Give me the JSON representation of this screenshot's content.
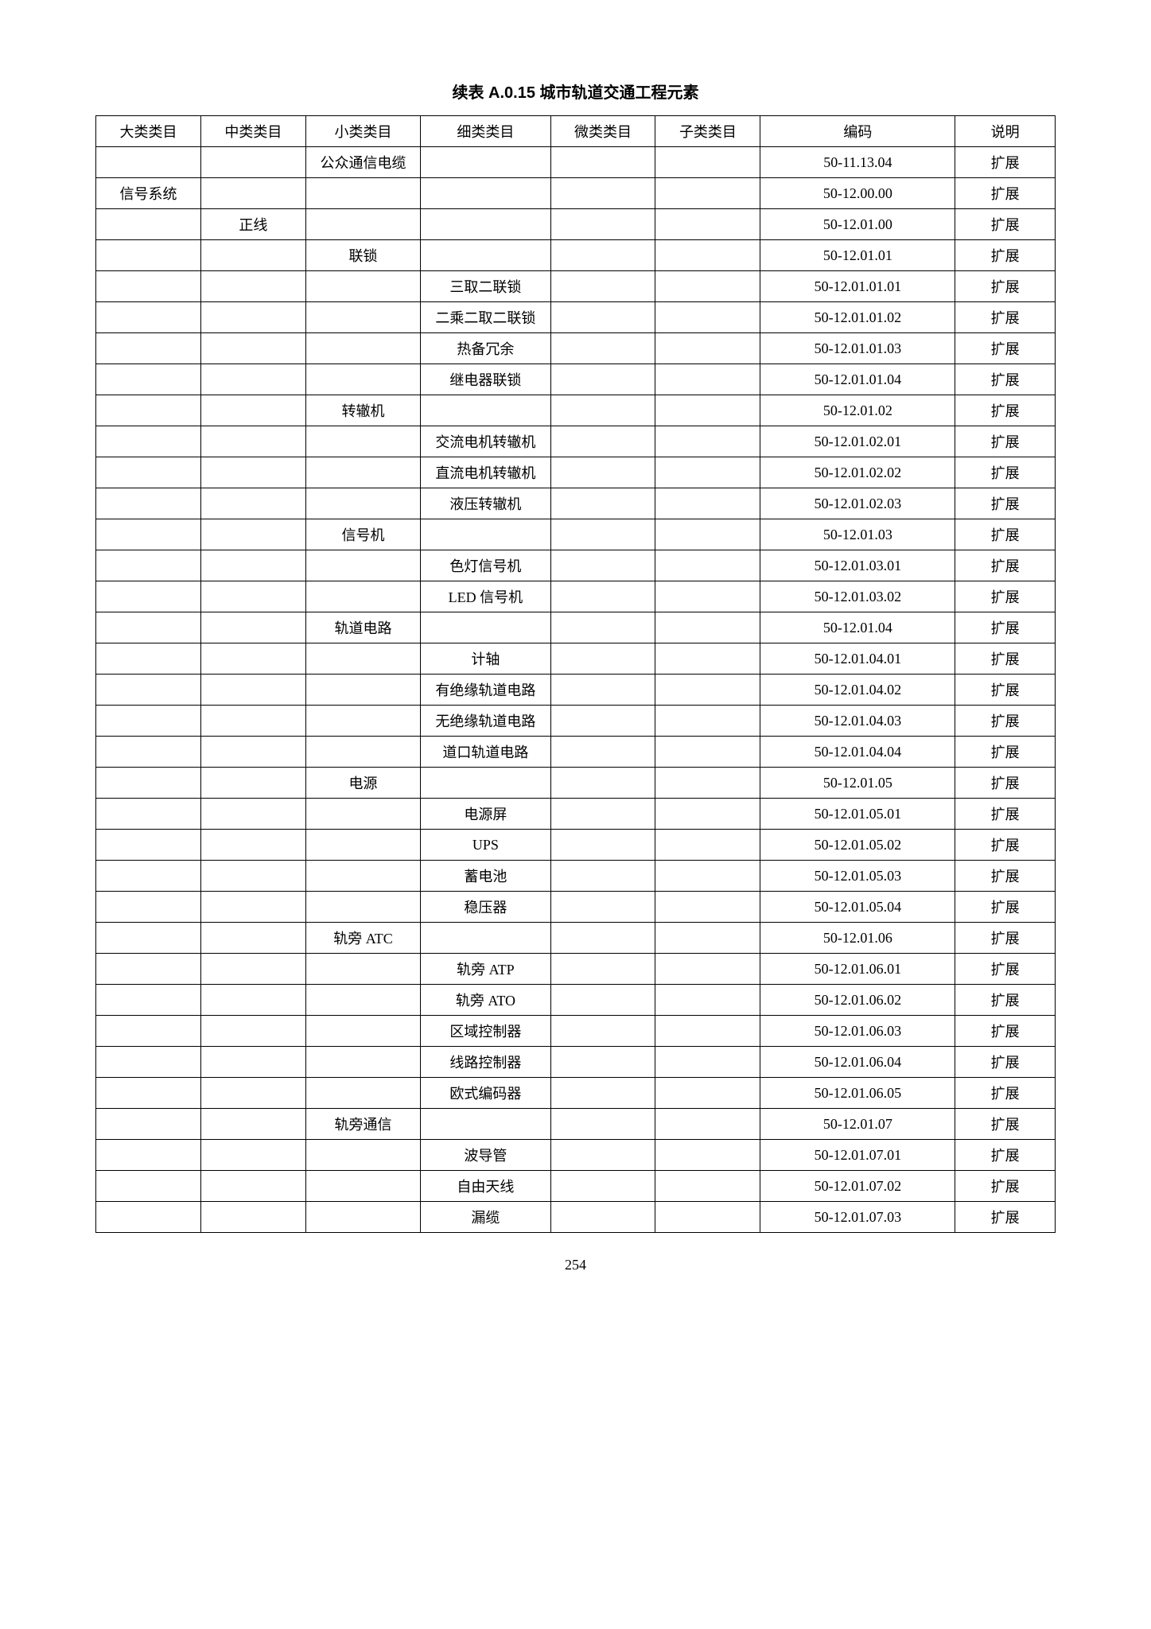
{
  "title": "续表 A.0.15  城市轨道交通工程元素",
  "pageNumber": "254",
  "headers": {
    "col1": "大类类目",
    "col2": "中类类目",
    "col3": "小类类目",
    "col4": "细类类目",
    "col5": "微类类目",
    "col6": "子类类目",
    "col7": "编码",
    "col8": "说明"
  },
  "rows": [
    {
      "c1": "",
      "c2": "",
      "c3": "公众通信电缆",
      "c4": "",
      "c5": "",
      "c6": "",
      "c7": "50-11.13.04",
      "c8": "扩展"
    },
    {
      "c1": "信号系统",
      "c2": "",
      "c3": "",
      "c4": "",
      "c5": "",
      "c6": "",
      "c7": "50-12.00.00",
      "c8": "扩展"
    },
    {
      "c1": "",
      "c2": "正线",
      "c3": "",
      "c4": "",
      "c5": "",
      "c6": "",
      "c7": "50-12.01.00",
      "c8": "扩展"
    },
    {
      "c1": "",
      "c2": "",
      "c3": "联锁",
      "c4": "",
      "c5": "",
      "c6": "",
      "c7": "50-12.01.01",
      "c8": "扩展"
    },
    {
      "c1": "",
      "c2": "",
      "c3": "",
      "c4": "三取二联锁",
      "c5": "",
      "c6": "",
      "c7": "50-12.01.01.01",
      "c8": "扩展"
    },
    {
      "c1": "",
      "c2": "",
      "c3": "",
      "c4": "二乘二取二联锁",
      "c5": "",
      "c6": "",
      "c7": "50-12.01.01.02",
      "c8": "扩展"
    },
    {
      "c1": "",
      "c2": "",
      "c3": "",
      "c4": "热备冗余",
      "c5": "",
      "c6": "",
      "c7": "50-12.01.01.03",
      "c8": "扩展"
    },
    {
      "c1": "",
      "c2": "",
      "c3": "",
      "c4": "继电器联锁",
      "c5": "",
      "c6": "",
      "c7": "50-12.01.01.04",
      "c8": "扩展"
    },
    {
      "c1": "",
      "c2": "",
      "c3": "转辙机",
      "c4": "",
      "c5": "",
      "c6": "",
      "c7": "50-12.01.02",
      "c8": "扩展"
    },
    {
      "c1": "",
      "c2": "",
      "c3": "",
      "c4": "交流电机转辙机",
      "c5": "",
      "c6": "",
      "c7": "50-12.01.02.01",
      "c8": "扩展"
    },
    {
      "c1": "",
      "c2": "",
      "c3": "",
      "c4": "直流电机转辙机",
      "c5": "",
      "c6": "",
      "c7": "50-12.01.02.02",
      "c8": "扩展"
    },
    {
      "c1": "",
      "c2": "",
      "c3": "",
      "c4": "液压转辙机",
      "c5": "",
      "c6": "",
      "c7": "50-12.01.02.03",
      "c8": "扩展"
    },
    {
      "c1": "",
      "c2": "",
      "c3": "信号机",
      "c4": "",
      "c5": "",
      "c6": "",
      "c7": "50-12.01.03",
      "c8": "扩展"
    },
    {
      "c1": "",
      "c2": "",
      "c3": "",
      "c4": "色灯信号机",
      "c5": "",
      "c6": "",
      "c7": "50-12.01.03.01",
      "c8": "扩展"
    },
    {
      "c1": "",
      "c2": "",
      "c3": "",
      "c4": "LED 信号机",
      "c5": "",
      "c6": "",
      "c7": "50-12.01.03.02",
      "c8": "扩展"
    },
    {
      "c1": "",
      "c2": "",
      "c3": "轨道电路",
      "c4": "",
      "c5": "",
      "c6": "",
      "c7": "50-12.01.04",
      "c8": "扩展"
    },
    {
      "c1": "",
      "c2": "",
      "c3": "",
      "c4": "计轴",
      "c5": "",
      "c6": "",
      "c7": "50-12.01.04.01",
      "c8": "扩展"
    },
    {
      "c1": "",
      "c2": "",
      "c3": "",
      "c4": "有绝缘轨道电路",
      "c5": "",
      "c6": "",
      "c7": "50-12.01.04.02",
      "c8": "扩展"
    },
    {
      "c1": "",
      "c2": "",
      "c3": "",
      "c4": "无绝缘轨道电路",
      "c5": "",
      "c6": "",
      "c7": "50-12.01.04.03",
      "c8": "扩展"
    },
    {
      "c1": "",
      "c2": "",
      "c3": "",
      "c4": "道口轨道电路",
      "c5": "",
      "c6": "",
      "c7": "50-12.01.04.04",
      "c8": "扩展"
    },
    {
      "c1": "",
      "c2": "",
      "c3": "电源",
      "c4": "",
      "c5": "",
      "c6": "",
      "c7": "50-12.01.05",
      "c8": "扩展"
    },
    {
      "c1": "",
      "c2": "",
      "c3": "",
      "c4": "电源屏",
      "c5": "",
      "c6": "",
      "c7": "50-12.01.05.01",
      "c8": "扩展"
    },
    {
      "c1": "",
      "c2": "",
      "c3": "",
      "c4": "UPS",
      "c5": "",
      "c6": "",
      "c7": "50-12.01.05.02",
      "c8": "扩展"
    },
    {
      "c1": "",
      "c2": "",
      "c3": "",
      "c4": "蓄电池",
      "c5": "",
      "c6": "",
      "c7": "50-12.01.05.03",
      "c8": "扩展"
    },
    {
      "c1": "",
      "c2": "",
      "c3": "",
      "c4": "稳压器",
      "c5": "",
      "c6": "",
      "c7": "50-12.01.05.04",
      "c8": "扩展"
    },
    {
      "c1": "",
      "c2": "",
      "c3": "轨旁 ATC",
      "c4": "",
      "c5": "",
      "c6": "",
      "c7": "50-12.01.06",
      "c8": "扩展"
    },
    {
      "c1": "",
      "c2": "",
      "c3": "",
      "c4": "轨旁 ATP",
      "c5": "",
      "c6": "",
      "c7": "50-12.01.06.01",
      "c8": "扩展"
    },
    {
      "c1": "",
      "c2": "",
      "c3": "",
      "c4": "轨旁 ATO",
      "c5": "",
      "c6": "",
      "c7": "50-12.01.06.02",
      "c8": "扩展"
    },
    {
      "c1": "",
      "c2": "",
      "c3": "",
      "c4": "区域控制器",
      "c5": "",
      "c6": "",
      "c7": "50-12.01.06.03",
      "c8": "扩展"
    },
    {
      "c1": "",
      "c2": "",
      "c3": "",
      "c4": "线路控制器",
      "c5": "",
      "c6": "",
      "c7": "50-12.01.06.04",
      "c8": "扩展"
    },
    {
      "c1": "",
      "c2": "",
      "c3": "",
      "c4": "欧式编码器",
      "c5": "",
      "c6": "",
      "c7": "50-12.01.06.05",
      "c8": "扩展"
    },
    {
      "c1": "",
      "c2": "",
      "c3": "轨旁通信",
      "c4": "",
      "c5": "",
      "c6": "",
      "c7": "50-12.01.07",
      "c8": "扩展"
    },
    {
      "c1": "",
      "c2": "",
      "c3": "",
      "c4": "波导管",
      "c5": "",
      "c6": "",
      "c7": "50-12.01.07.01",
      "c8": "扩展"
    },
    {
      "c1": "",
      "c2": "",
      "c3": "",
      "c4": "自由天线",
      "c5": "",
      "c6": "",
      "c7": "50-12.01.07.02",
      "c8": "扩展"
    },
    {
      "c1": "",
      "c2": "",
      "c3": "",
      "c4": "漏缆",
      "c5": "",
      "c6": "",
      "c7": "50-12.01.07.03",
      "c8": "扩展"
    }
  ]
}
